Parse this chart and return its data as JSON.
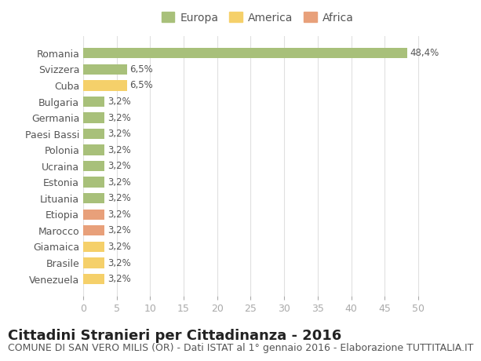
{
  "categories": [
    "Venezuela",
    "Brasile",
    "Giamaica",
    "Marocco",
    "Etiopia",
    "Lituania",
    "Estonia",
    "Ucraina",
    "Polonia",
    "Paesi Bassi",
    "Germania",
    "Bulgaria",
    "Cuba",
    "Svizzera",
    "Romania"
  ],
  "values": [
    3.2,
    3.2,
    3.2,
    3.2,
    3.2,
    3.2,
    3.2,
    3.2,
    3.2,
    3.2,
    3.2,
    3.2,
    6.5,
    6.5,
    48.4
  ],
  "continent": [
    "America",
    "America",
    "America",
    "Africa",
    "Africa",
    "Europa",
    "Europa",
    "Europa",
    "Europa",
    "Europa",
    "Europa",
    "Europa",
    "America",
    "Europa",
    "Europa"
  ],
  "bar_colors": {
    "Europa": "#a8c07a",
    "America": "#f5d06a",
    "Africa": "#e8a07a"
  },
  "labels": [
    "3,2%",
    "3,2%",
    "3,2%",
    "3,2%",
    "3,2%",
    "3,2%",
    "3,2%",
    "3,2%",
    "3,2%",
    "3,2%",
    "3,2%",
    "3,2%",
    "6,5%",
    "6,5%",
    "48,4%"
  ],
  "xlim": [
    0,
    52
  ],
  "xticks": [
    0,
    5,
    10,
    15,
    20,
    25,
    30,
    35,
    40,
    45,
    50
  ],
  "title": "Cittadini Stranieri per Cittadinanza - 2016",
  "subtitle": "COMUNE DI SAN VERO MILIS (OR) - Dati ISTAT al 1° gennaio 2016 - Elaborazione TUTTITALIA.IT",
  "legend_labels": [
    "Europa",
    "America",
    "Africa"
  ],
  "legend_colors": [
    "#a8c07a",
    "#f5d06a",
    "#e8a07a"
  ],
  "background_color": "#ffffff",
  "grid_color": "#e0e0e0",
  "bar_height": 0.65,
  "title_fontsize": 13,
  "subtitle_fontsize": 9,
  "tick_fontsize": 9,
  "label_fontsize": 8.5
}
